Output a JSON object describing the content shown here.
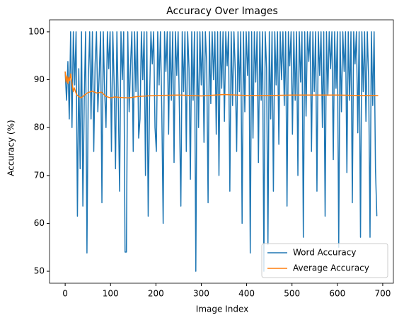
{
  "chart_data": {
    "type": "line",
    "title": "Accuracy Over Images",
    "xlabel": "Image Index",
    "ylabel": "Accuracy (%)",
    "x": [
      0,
      3,
      6,
      9,
      12,
      15,
      18,
      21,
      24,
      27,
      30,
      33,
      36,
      39,
      42,
      45,
      48,
      51,
      54,
      57,
      60,
      63,
      66,
      69,
      72,
      75,
      78,
      81,
      84,
      87,
      90,
      93,
      96,
      99,
      102,
      105,
      108,
      111,
      114,
      117,
      120,
      123,
      126,
      129,
      132,
      135,
      138,
      141,
      144,
      147,
      150,
      153,
      156,
      159,
      162,
      165,
      168,
      171,
      174,
      177,
      180,
      183,
      186,
      189,
      192,
      195,
      198,
      201,
      204,
      207,
      210,
      213,
      216,
      219,
      222,
      225,
      228,
      231,
      234,
      237,
      240,
      243,
      246,
      249,
      252,
      255,
      258,
      261,
      264,
      267,
      270,
      273,
      276,
      279,
      282,
      285,
      288,
      291,
      294,
      297,
      300,
      303,
      306,
      309,
      312,
      315,
      318,
      321,
      324,
      327,
      330,
      333,
      336,
      339,
      342,
      345,
      348,
      351,
      354,
      357,
      360,
      363,
      366,
      369,
      372,
      375,
      378,
      381,
      384,
      387,
      390,
      393,
      396,
      399,
      402,
      405,
      408,
      411,
      414,
      417,
      420,
      423,
      426,
      429,
      432,
      435,
      438,
      441,
      444,
      447,
      450,
      453,
      456,
      459,
      462,
      465,
      468,
      471,
      474,
      477,
      480,
      483,
      486,
      489,
      492,
      495,
      498,
      501,
      504,
      507,
      510,
      513,
      516,
      519,
      522,
      525,
      528,
      531,
      534,
      537,
      540,
      543,
      546,
      549,
      552,
      555,
      558,
      561,
      564,
      567,
      570,
      573,
      576,
      579,
      582,
      585,
      588,
      591,
      594,
      597,
      600,
      603,
      606,
      609,
      612,
      615,
      618,
      621,
      624,
      627,
      630,
      633,
      636,
      639,
      642,
      645,
      648,
      651,
      654,
      657,
      660,
      663,
      666,
      669,
      672,
      675,
      678,
      681,
      684,
      687
    ],
    "series": [
      {
        "name": "Word Accuracy",
        "color": "#1f77b4",
        "values": [
          91.7,
          85.7,
          93.8,
          81.8,
          100,
          80,
          100,
          88.9,
          100,
          61.5,
          92.3,
          71.4,
          100,
          63.6,
          85.7,
          100,
          53.8,
          90,
          100,
          81.8,
          100,
          75,
          93.3,
          100,
          83.3,
          90.9,
          100,
          64.3,
          100,
          87.5,
          80,
          100,
          92.3,
          100,
          75,
          100,
          88.9,
          71.4,
          100,
          85.7,
          66.7,
          100,
          90,
          100,
          54,
          54,
          100,
          83.3,
          92.9,
          100,
          75,
          100,
          87.5,
          100,
          77.8,
          81.8,
          100,
          90,
          100,
          70,
          100,
          61.5,
          85.7,
          100,
          93.3,
          100,
          80,
          75,
          100,
          88.9,
          100,
          83.3,
          60,
          100,
          91.7,
          100,
          78.6,
          100,
          85.7,
          100,
          72.7,
          100,
          90.9,
          100,
          82.4,
          63.6,
          100,
          87.5,
          100,
          75,
          100,
          92.3,
          69.2,
          100,
          85.7,
          100,
          50,
          100,
          80,
          100,
          88.9,
          100,
          76.9,
          100,
          93.3,
          64.3,
          100,
          85,
          100,
          90,
          100,
          78.6,
          100,
          70,
          100,
          88.2,
          100,
          81.3,
          100,
          92.9,
          100,
          66.7,
          100,
          84.6,
          100,
          91.7,
          75,
          100,
          87.5,
          100,
          60,
          100,
          83.3,
          100,
          90.9,
          100,
          53.8,
          100,
          77.8,
          100,
          89.5,
          100,
          72.7,
          100,
          85.7,
          100,
          50,
          100,
          92.3,
          55.6,
          100,
          81.8,
          100,
          66.7,
          100,
          88.9,
          100,
          76.5,
          100,
          90,
          100,
          84.6,
          100,
          63.6,
          100,
          92.9,
          100,
          78.6,
          100,
          85.7,
          100,
          70,
          100,
          89.5,
          100,
          57.1,
          100,
          82.4,
          100,
          93.8,
          100,
          75,
          100,
          87.5,
          100,
          66.7,
          100,
          90.9,
          100,
          80,
          100,
          61.5,
          100,
          86.7,
          100,
          92.3,
          100,
          73.3,
          100,
          88.2,
          100,
          55,
          100,
          83.3,
          100,
          91.7,
          100,
          70.6,
          100,
          85.7,
          100,
          64.3,
          100,
          93.3,
          100,
          78.9,
          100,
          57.1,
          100,
          87.5,
          100,
          81.3,
          100,
          90,
          57.1,
          100,
          84.6,
          100,
          71.4,
          61.5
        ]
      },
      {
        "name": "Average Accuracy",
        "color": "#ff7f0e",
        "x": [
          0,
          2,
          4,
          6,
          8,
          10,
          12,
          14,
          16,
          18,
          20,
          25,
          30,
          35,
          40,
          50,
          60,
          70,
          80,
          90,
          100,
          110,
          120,
          140,
          160,
          180,
          200,
          250,
          300,
          350,
          400,
          450,
          500,
          550,
          600,
          650,
          690
        ],
        "values": [
          91.7,
          89.5,
          90.8,
          89.2,
          90.5,
          89.8,
          91.2,
          90.0,
          88.6,
          87.5,
          88.3,
          86.9,
          86.5,
          86.2,
          86.6,
          87.3,
          87.6,
          87.2,
          87.4,
          86.5,
          86.2,
          86.4,
          86.3,
          86.2,
          86.5,
          86.6,
          86.7,
          86.8,
          86.6,
          86.9,
          86.7,
          86.7,
          86.8,
          86.8,
          86.8,
          86.7,
          86.7
        ]
      }
    ],
    "xlim": [
      -34.5,
      723.5
    ],
    "xticks": [
      0,
      100,
      200,
      300,
      400,
      500,
      600,
      700
    ],
    "ylim": [
      47.5,
      102.5
    ],
    "yticks": [
      50,
      60,
      70,
      80,
      90,
      100
    ],
    "legend": "lower right"
  }
}
